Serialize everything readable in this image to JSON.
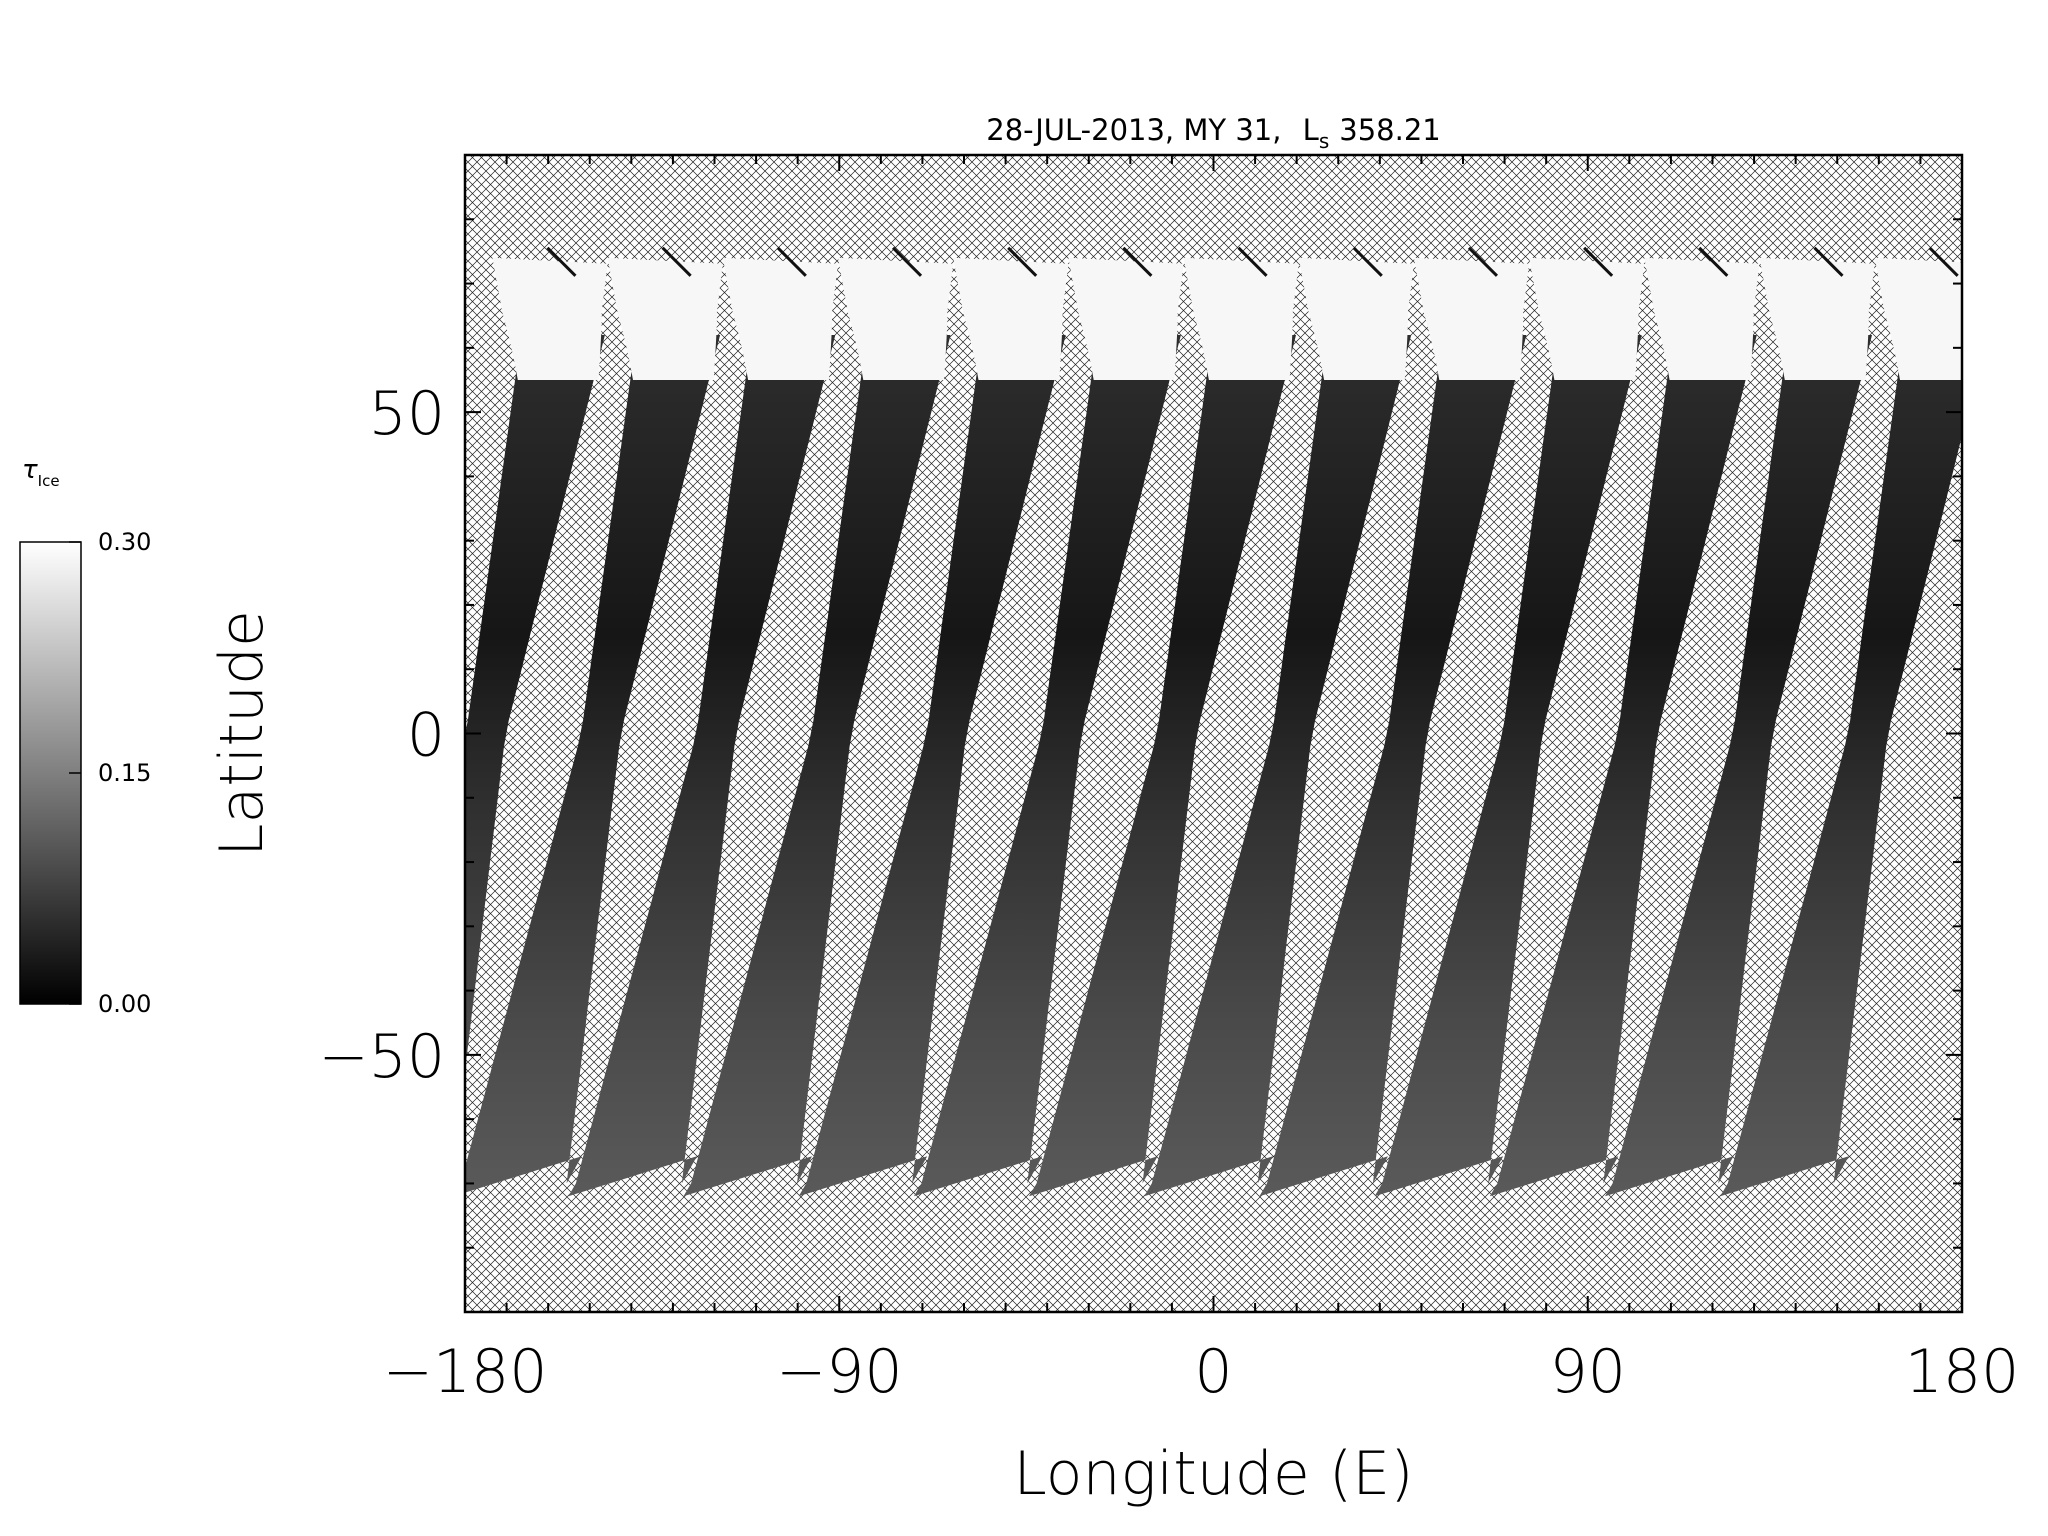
{
  "chart_data": {
    "type": "heatmap",
    "title": {
      "date": "28-JUL-2013, MY 31,",
      "ls_symbol": "L",
      "ls_subscript": "s",
      "ls_value": "358.21"
    },
    "xlabel": "Longitude (E)",
    "ylabel": "Latitude",
    "xlim": [
      -180,
      180
    ],
    "ylim": [
      -90,
      90
    ],
    "x_ticks": [
      {
        "value": -180,
        "label": "−180"
      },
      {
        "value": -90,
        "label": "−90"
      },
      {
        "value": 0,
        "label": "0"
      },
      {
        "value": 90,
        "label": "90"
      },
      {
        "value": 180,
        "label": "180"
      }
    ],
    "y_ticks": [
      {
        "value": -50,
        "label": "−50"
      },
      {
        "value": 0,
        "label": "0"
      },
      {
        "value": 50,
        "label": "50"
      }
    ],
    "x_minor_step": 10,
    "y_minor_step": 10,
    "colorbar": {
      "label_symbol": "τ",
      "label_subscript": "Ice",
      "min": 0.0,
      "max": 0.3,
      "colormap": "grayscale",
      "ticks": [
        {
          "value": 0.0,
          "label": "0.00"
        },
        {
          "value": 0.15,
          "label": "0.15"
        },
        {
          "value": 0.3,
          "label": "0.30"
        }
      ]
    },
    "swaths": {
      "count": 13,
      "first_equator_lon": -175,
      "spacing_lon": 27.7,
      "width_equator_lon": 9.5,
      "top_lat": 74,
      "bottom_lat": -72,
      "cap_bottom_lat": 55,
      "no_data_pattern": "crosshatch"
    }
  }
}
